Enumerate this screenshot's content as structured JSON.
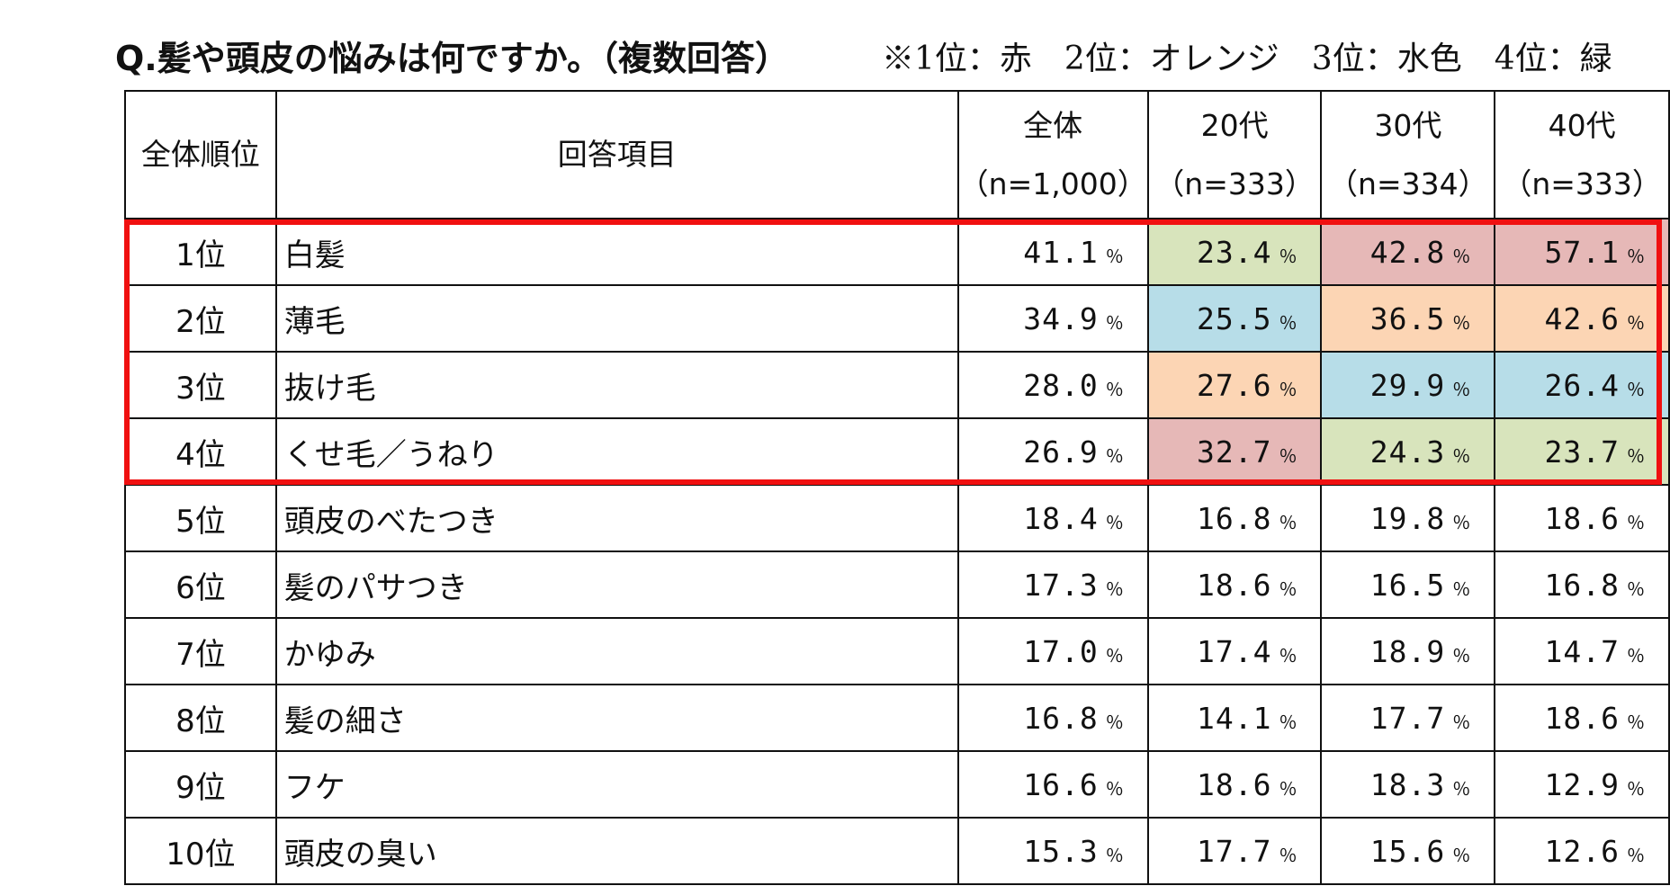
{
  "question": "Q.髪や頭皮の悩みは何ですか。（複数回答）",
  "legend_note": "※1位：赤　2位：オレンジ　3位：水色　4位：緑",
  "colors": {
    "rank1": "#e6b8b7",
    "rank2": "#fcd5b4",
    "rank3": "#b7dde8",
    "rank4": "#d8e4bc",
    "highlight_border": "#f01010"
  },
  "chart_data": {
    "type": "table",
    "columns": [
      {
        "label": "全体順位"
      },
      {
        "label": "回答項目"
      },
      {
        "label": "全体",
        "n": "（n=1,000）"
      },
      {
        "label": "20代",
        "n": "（n=333）"
      },
      {
        "label": "30代",
        "n": "（n=334）"
      },
      {
        "label": "40代",
        "n": "（n=333）"
      }
    ],
    "unit": "％",
    "rows": [
      {
        "rank": "1位",
        "item": "白髪",
        "values": [
          "41.1",
          "23.4",
          "42.8",
          "57.1"
        ],
        "color_rank": [
          null,
          4,
          1,
          1
        ]
      },
      {
        "rank": "2位",
        "item": "薄毛",
        "values": [
          "34.9",
          "25.5",
          "36.5",
          "42.6"
        ],
        "color_rank": [
          null,
          3,
          2,
          2
        ]
      },
      {
        "rank": "3位",
        "item": "抜け毛",
        "values": [
          "28.0",
          "27.6",
          "29.9",
          "26.4"
        ],
        "color_rank": [
          null,
          2,
          3,
          3
        ]
      },
      {
        "rank": "4位",
        "item": "くせ毛／うねり",
        "values": [
          "26.9",
          "32.7",
          "24.3",
          "23.7"
        ],
        "color_rank": [
          null,
          1,
          4,
          4
        ]
      },
      {
        "rank": "5位",
        "item": "頭皮のべたつき",
        "values": [
          "18.4",
          "16.8",
          "19.8",
          "18.6"
        ],
        "color_rank": [
          null,
          null,
          null,
          null
        ]
      },
      {
        "rank": "6位",
        "item": "髪のパサつき",
        "values": [
          "17.3",
          "18.6",
          "16.5",
          "16.8"
        ],
        "color_rank": [
          null,
          null,
          null,
          null
        ]
      },
      {
        "rank": "7位",
        "item": "かゆみ",
        "values": [
          "17.0",
          "17.4",
          "18.9",
          "14.7"
        ],
        "color_rank": [
          null,
          null,
          null,
          null
        ]
      },
      {
        "rank": "8位",
        "item": "髪の細さ",
        "values": [
          "16.8",
          "14.1",
          "17.7",
          "18.6"
        ],
        "color_rank": [
          null,
          null,
          null,
          null
        ]
      },
      {
        "rank": "9位",
        "item": "フケ",
        "values": [
          "16.6",
          "18.6",
          "18.3",
          "12.9"
        ],
        "color_rank": [
          null,
          null,
          null,
          null
        ]
      },
      {
        "rank": "10位",
        "item": "頭皮の臭い",
        "values": [
          "15.3",
          "17.7",
          "15.6",
          "12.6"
        ],
        "color_rank": [
          null,
          null,
          null,
          null
        ]
      }
    ]
  }
}
